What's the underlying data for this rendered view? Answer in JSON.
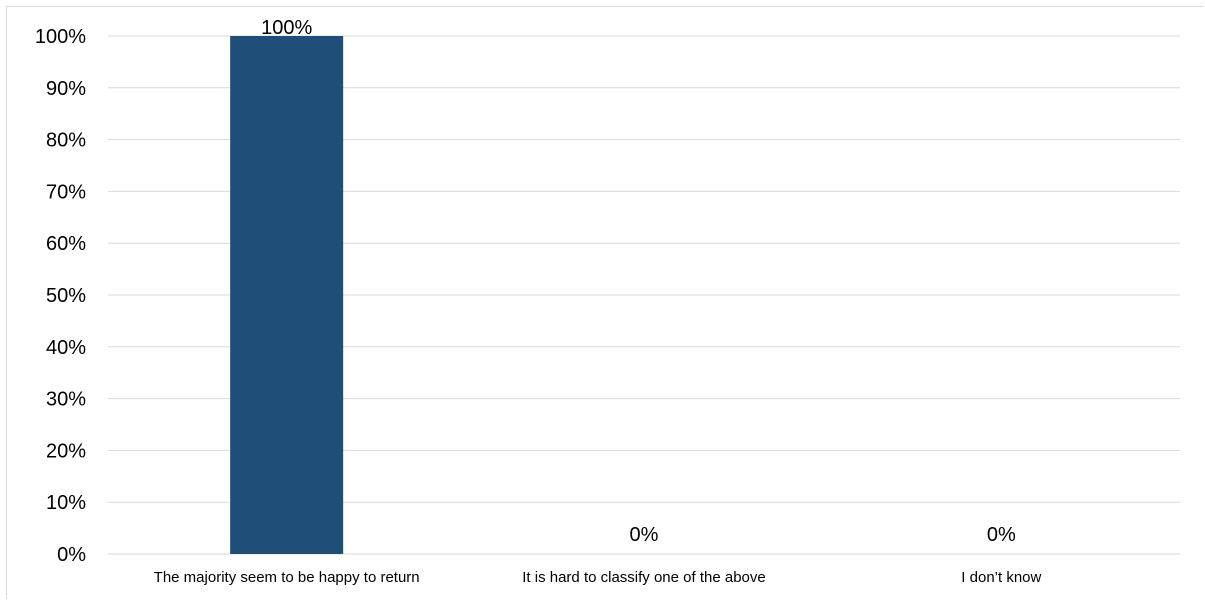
{
  "chart_data": {
    "type": "bar",
    "categories": [
      "The majority seem to be happy to return",
      "It is hard to classify one of the above",
      "I don’t know"
    ],
    "values": [
      100,
      0,
      0
    ],
    "data_labels": [
      "100%",
      "0%",
      "0%"
    ],
    "y_ticks": [
      "0%",
      "10%",
      "20%",
      "30%",
      "40%",
      "50%",
      "60%",
      "70%",
      "80%",
      "90%",
      "100%"
    ],
    "ylim": [
      0,
      100
    ],
    "grid": true,
    "legend": "none",
    "colors": {
      "bar": "#1f4e79",
      "grid": "#d9d9d9"
    }
  }
}
